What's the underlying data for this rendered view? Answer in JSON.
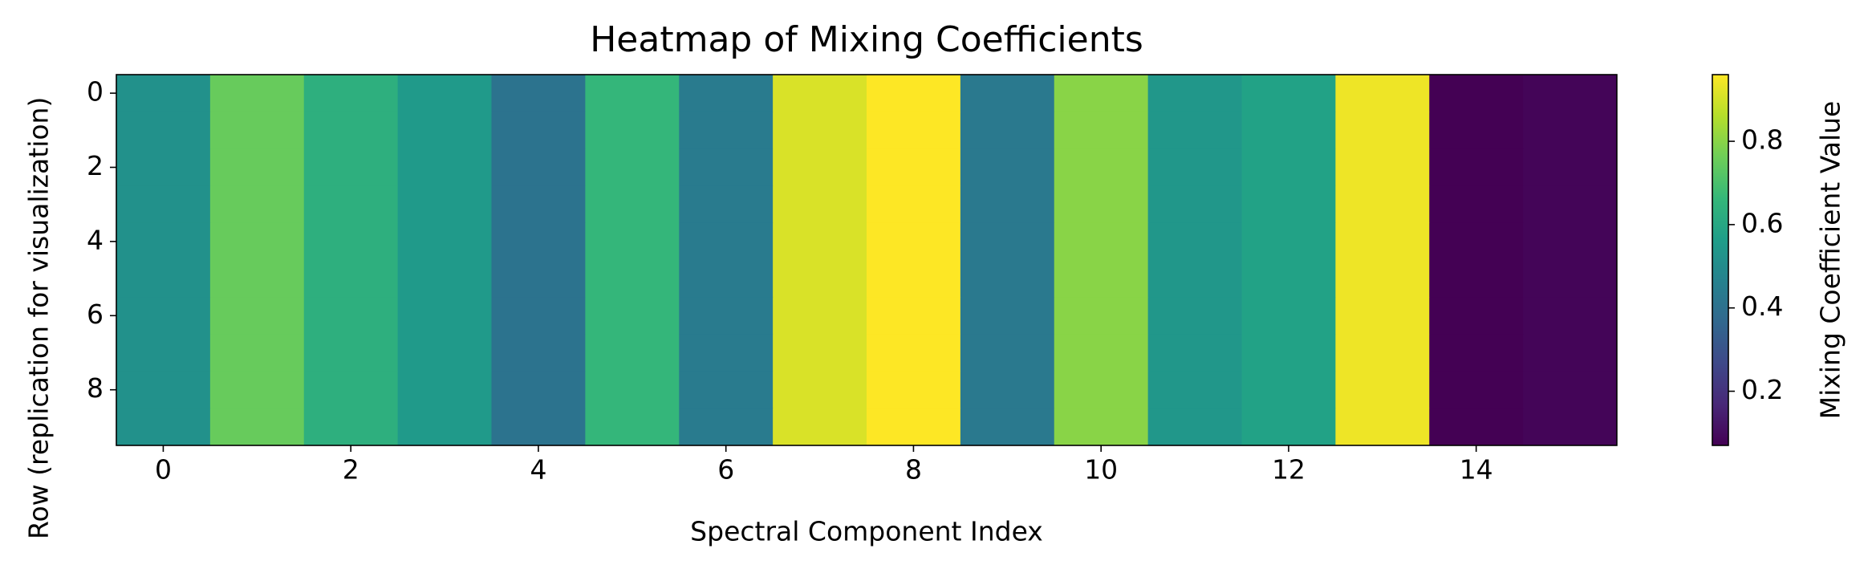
{
  "chart_data": {
    "type": "heatmap",
    "title": "Heatmap of Mixing Coefficients",
    "x_label": "Spectral Component Index",
    "y_label": "Row (replication for visualization)",
    "colorbar_label": "Mixing Coefficient Value",
    "colormap": "viridis",
    "values": [
      [
        0.52,
        0.75,
        0.63,
        0.55,
        0.41,
        0.66,
        0.44,
        0.91,
        0.96,
        0.43,
        0.8,
        0.54,
        0.58,
        0.94,
        0.07,
        0.08
      ],
      [
        0.52,
        0.75,
        0.63,
        0.55,
        0.41,
        0.66,
        0.44,
        0.91,
        0.96,
        0.43,
        0.8,
        0.54,
        0.58,
        0.94,
        0.07,
        0.08
      ],
      [
        0.52,
        0.75,
        0.63,
        0.55,
        0.41,
        0.66,
        0.44,
        0.91,
        0.96,
        0.43,
        0.8,
        0.54,
        0.58,
        0.94,
        0.07,
        0.08
      ],
      [
        0.52,
        0.75,
        0.63,
        0.55,
        0.41,
        0.66,
        0.44,
        0.91,
        0.96,
        0.43,
        0.8,
        0.54,
        0.58,
        0.94,
        0.07,
        0.08
      ],
      [
        0.52,
        0.75,
        0.63,
        0.55,
        0.41,
        0.66,
        0.44,
        0.91,
        0.96,
        0.43,
        0.8,
        0.54,
        0.58,
        0.94,
        0.07,
        0.08
      ],
      [
        0.52,
        0.75,
        0.63,
        0.55,
        0.41,
        0.66,
        0.44,
        0.91,
        0.96,
        0.43,
        0.8,
        0.54,
        0.58,
        0.94,
        0.07,
        0.08
      ],
      [
        0.52,
        0.75,
        0.63,
        0.55,
        0.41,
        0.66,
        0.44,
        0.91,
        0.96,
        0.43,
        0.8,
        0.54,
        0.58,
        0.94,
        0.07,
        0.08
      ],
      [
        0.52,
        0.75,
        0.63,
        0.55,
        0.41,
        0.66,
        0.44,
        0.91,
        0.96,
        0.43,
        0.8,
        0.54,
        0.58,
        0.94,
        0.07,
        0.08
      ],
      [
        0.52,
        0.75,
        0.63,
        0.55,
        0.41,
        0.66,
        0.44,
        0.91,
        0.96,
        0.43,
        0.8,
        0.54,
        0.58,
        0.94,
        0.07,
        0.08
      ],
      [
        0.52,
        0.75,
        0.63,
        0.55,
        0.41,
        0.66,
        0.44,
        0.91,
        0.96,
        0.43,
        0.8,
        0.54,
        0.58,
        0.94,
        0.07,
        0.08
      ]
    ],
    "xlim": [
      -0.5,
      15.5
    ],
    "xticks": [
      0,
      2,
      4,
      6,
      8,
      10,
      12,
      14
    ],
    "ylim": [
      9.5,
      -0.5
    ],
    "yticks": [
      0,
      2,
      4,
      6,
      8
    ],
    "clim": [
      0.07,
      0.96
    ],
    "cticks": [
      0.2,
      0.4,
      0.6,
      0.8
    ]
  }
}
